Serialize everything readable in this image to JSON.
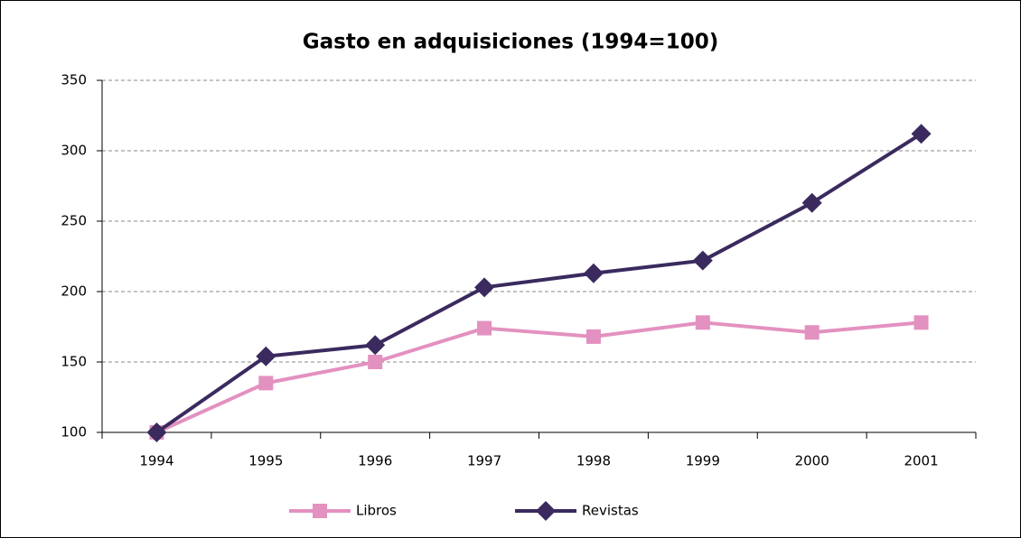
{
  "chart_data": {
    "type": "line",
    "title": "Gasto en adquisiciones (1994=100)",
    "categories": [
      "1994",
      "1995",
      "1996",
      "1997",
      "1998",
      "1999",
      "2000",
      "2001"
    ],
    "series": [
      {
        "name": "Libros",
        "color": "#e391c0",
        "marker": "square",
        "values": [
          100,
          135,
          150,
          174,
          168,
          178,
          171,
          178
        ]
      },
      {
        "name": "Revistas",
        "color": "#3a2a5e",
        "marker": "diamond",
        "values": [
          100,
          154,
          162,
          203,
          213,
          222,
          263,
          312
        ]
      }
    ],
    "ylim": [
      100,
      350
    ],
    "yticks": [
      100,
      150,
      200,
      250,
      300,
      350
    ],
    "grid": true,
    "legend": "bottom"
  }
}
